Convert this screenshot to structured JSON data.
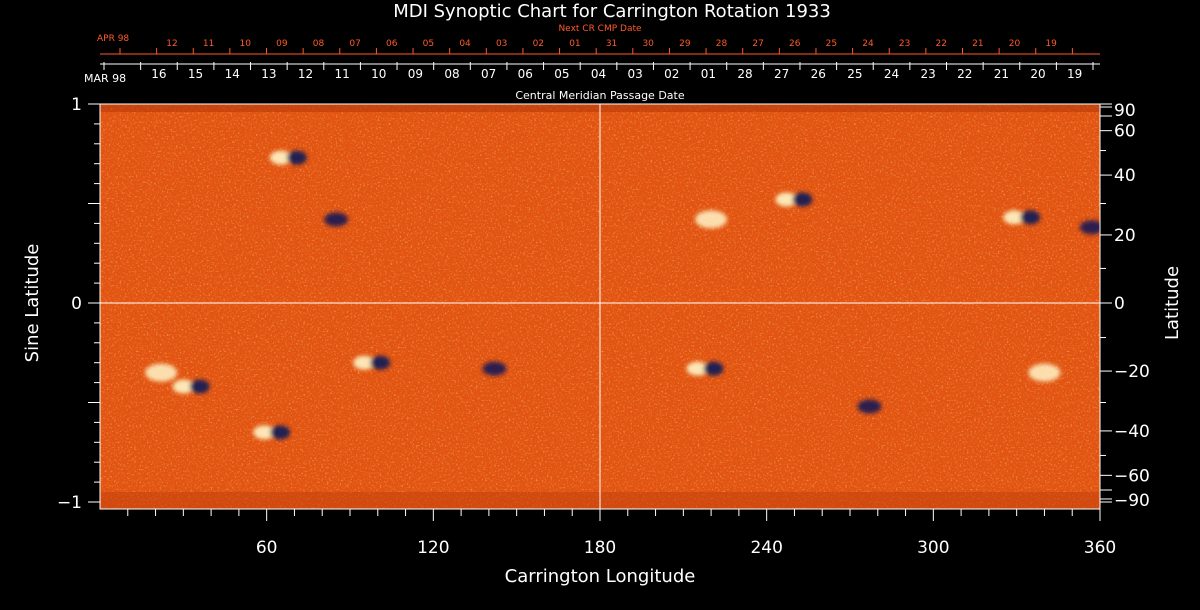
{
  "chart_data": {
    "type": "heatmap",
    "title": "MDI Synoptic Chart for Carrington Rotation 1933",
    "xlabel": "Carrington Longitude",
    "ylabel_left": "Sine Latitude",
    "ylabel_right": "Latitude",
    "xlim": [
      0,
      360
    ],
    "ylim": [
      -1,
      1
    ],
    "x_ticks": [
      60,
      120,
      180,
      240,
      300,
      360
    ],
    "y_ticks_left": [
      {
        "value": 1,
        "label": "1"
      },
      {
        "value": 0,
        "label": "0"
      },
      {
        "value": -1,
        "label": "−1"
      }
    ],
    "y_ticks_right": [
      90,
      60,
      40,
      20,
      0,
      -20,
      -40,
      -60,
      -90
    ],
    "y_ticks_right_labels": [
      "90",
      "60",
      "40",
      "20",
      "0",
      "−20",
      "−40",
      "−60",
      "−90"
    ],
    "grid": "center crosshair at longitude 180 and latitude 0",
    "colors": {
      "background": "#000000",
      "map_base": "#e85a10",
      "positive_polarity": "#fff6c8",
      "negative_polarity": "#141a55",
      "next_cr_axis": "#ff5a28",
      "axis": "#ffffff"
    },
    "cmp_axis": {
      "title": "Central Meridian Passage Date",
      "start_label": "MAR 98",
      "dates": [
        "16",
        "15",
        "14",
        "13",
        "12",
        "11",
        "10",
        "09",
        "08",
        "07",
        "06",
        "05",
        "04",
        "03",
        "02",
        "01",
        "28",
        "27",
        "26",
        "25",
        "24",
        "23",
        "22",
        "21",
        "20",
        "19"
      ]
    },
    "next_cr_axis": {
      "title": "Next CR CMP Date",
      "start_label": "APR 98",
      "dates": [
        "12",
        "11",
        "10",
        "09",
        "08",
        "07",
        "06",
        "05",
        "04",
        "03",
        "02",
        "01",
        "31",
        "30",
        "29",
        "28",
        "27",
        "26",
        "25",
        "24",
        "23",
        "22",
        "21",
        "20",
        "19"
      ]
    },
    "active_regions": [
      {
        "lon": 68,
        "sinlat": 0.73,
        "polarity": "mixed"
      },
      {
        "lon": 85,
        "sinlat": 0.42,
        "polarity": "negative"
      },
      {
        "lon": 22,
        "sinlat": -0.35,
        "polarity": "positive"
      },
      {
        "lon": 33,
        "sinlat": -0.42,
        "polarity": "mixed"
      },
      {
        "lon": 62,
        "sinlat": -0.65,
        "polarity": "mixed"
      },
      {
        "lon": 98,
        "sinlat": -0.3,
        "polarity": "mixed"
      },
      {
        "lon": 142,
        "sinlat": -0.33,
        "polarity": "negative"
      },
      {
        "lon": 218,
        "sinlat": -0.33,
        "polarity": "mixed"
      },
      {
        "lon": 250,
        "sinlat": 0.52,
        "polarity": "mixed"
      },
      {
        "lon": 220,
        "sinlat": 0.42,
        "polarity": "positive"
      },
      {
        "lon": 332,
        "sinlat": 0.43,
        "polarity": "mixed"
      },
      {
        "lon": 357,
        "sinlat": 0.38,
        "polarity": "negative"
      },
      {
        "lon": 277,
        "sinlat": -0.52,
        "polarity": "negative"
      },
      {
        "lon": 340,
        "sinlat": -0.35,
        "polarity": "positive"
      }
    ]
  }
}
